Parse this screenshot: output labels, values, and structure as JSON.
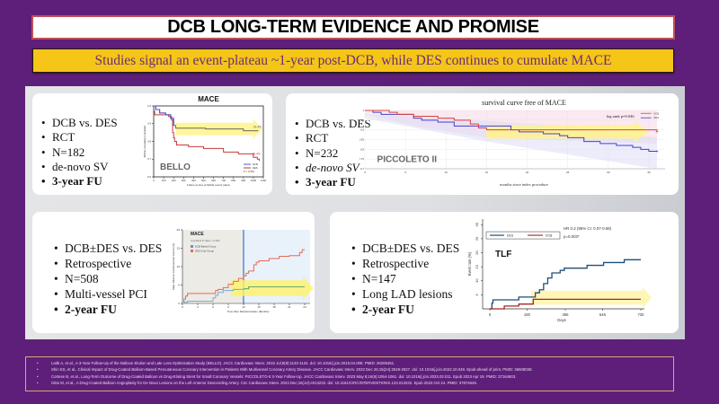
{
  "title": "DCB LONG-TERM EVIDENCE AND PROMISE",
  "subtitle": "Studies signal an event-plateau ~1-year post-DCB, while DES continues to cumulate MACE",
  "colors": {
    "background": "#5e1f7a",
    "title_border": "#c0505a",
    "subtitle_bg": "#f5c518",
    "subtitle_text": "#6b2d7a",
    "highlight_arrow": "#fff38a",
    "dcb_red": "#d03030",
    "des_blue": "#3a3ad0"
  },
  "cards": [
    {
      "bullets": [
        "DCB vs. DES",
        "RCT",
        "N=182",
        "de-novo SV",
        "3-year FU"
      ],
      "bold_index": 4,
      "chart": {
        "title": "MACE",
        "study_label": "BELLO",
        "ylabel": "MACE cumulative probability",
        "xlabel": "Follow-up time at MACE events (days)",
        "legend": [
          "DCB",
          "DES"
        ],
        "p_value": "P = 0.019",
        "annotations": {
          "dcb": "14.4%",
          "des": "30.4%"
        }
      }
    },
    {
      "bullets": [
        "DCB vs. DES",
        "RCT",
        "N=232",
        "de-novo SV",
        "3-year FU"
      ],
      "italic_index": 3,
      "bold_index": 4,
      "chart": {
        "title": "survival curve free of MACE",
        "study_label": "PICCOLETO II",
        "xlabel": "months since index procedure",
        "legend": [
          "DCB",
          "DES"
        ],
        "log_rank": "log rank p=0.046"
      }
    },
    {
      "bullets": [
        "DCB±DES vs. DES",
        "Retrospective",
        "N=508",
        "Multi-vessel PCI",
        "2-year FU"
      ],
      "bold_index": 4,
      "chart": {
        "title": "MACE",
        "subtitle": "Log-Rank P value = 0.002",
        "ylabel": "Major Adverse Cardiovascular Events (%)",
        "xlabel": "Time After Randomization (Months)",
        "legend": [
          "DCB-Based Group",
          "DES-Only Group"
        ]
      }
    },
    {
      "bullets": [
        "DCB±DES vs. DES",
        "Retrospective",
        "N=147",
        "Long LAD lesions",
        "2-year FU"
      ],
      "bold_index": 4,
      "chart": {
        "title": "TLF",
        "ylabel": "Event rate (%)",
        "xlabel": "Days",
        "legend": [
          "DES",
          "DCB"
        ],
        "hr_text": "HR 0.2 (95% CI: 0.07-0.58)",
        "p_text": "p=0.003*"
      }
    }
  ],
  "chart_data": [
    {
      "type": "line",
      "title": "MACE",
      "xlabel": "Follow-up time at MACE events (days)",
      "ylabel": "MACE cumulative probability",
      "x_ticks": [
        "0",
        "100",
        "200",
        "300",
        "400",
        "500",
        "600",
        "700",
        "800",
        "900",
        "1000",
        "1100"
      ],
      "y_ticks": [
        "0.6",
        "0.7",
        "0.8",
        "0.9",
        "1.0"
      ],
      "xlim": [
        0,
        1100
      ],
      "ylim": [
        0.6,
        1.0
      ],
      "series": [
        {
          "name": "DCB",
          "x": [
            0,
            20,
            60,
            120,
            170,
            200,
            220,
            520,
            900,
            1050
          ],
          "y": [
            1.0,
            0.98,
            0.96,
            0.95,
            0.93,
            0.89,
            0.875,
            0.87,
            0.86,
            0.86
          ]
        },
        {
          "name": "DES",
          "x": [
            0,
            10,
            150,
            180,
            190,
            200,
            210,
            230,
            350,
            500,
            700,
            850,
            1000,
            1040,
            1060
          ],
          "y": [
            0.97,
            0.95,
            0.94,
            0.92,
            0.85,
            0.82,
            0.8,
            0.78,
            0.77,
            0.76,
            0.74,
            0.73,
            0.71,
            0.7,
            0.69
          ]
        }
      ]
    },
    {
      "type": "line",
      "title": "survival curve free of MACE",
      "xlabel": "months since index procedure",
      "x_ticks": [
        "0",
        "5",
        "10",
        "15",
        "20",
        "25",
        "30",
        "35"
      ],
      "y_ticks": [
        "0.7",
        "0.75",
        "0.8",
        "0.85",
        "0.9",
        "0.95",
        "1"
      ],
      "xlim": [
        0,
        37
      ],
      "ylim": [
        0.7,
        1.0
      ],
      "series": [
        {
          "name": "DCB",
          "x": [
            0,
            3,
            4,
            6,
            9,
            11,
            13,
            14,
            15,
            36
          ],
          "y": [
            1.0,
            0.99,
            0.98,
            0.97,
            0.96,
            0.95,
            0.93,
            0.91,
            0.9,
            0.89
          ]
        },
        {
          "name": "DES",
          "x": [
            0,
            1,
            2,
            6,
            7,
            9,
            11,
            18,
            19,
            22,
            24,
            25,
            27,
            29,
            31,
            33,
            34,
            35,
            36
          ],
          "y": [
            1.0,
            0.99,
            0.98,
            0.96,
            0.95,
            0.94,
            0.92,
            0.9,
            0.89,
            0.88,
            0.87,
            0.86,
            0.84,
            0.83,
            0.82,
            0.81,
            0.8,
            0.79,
            0.79
          ]
        }
      ],
      "annotation": "log rank p=0.046"
    },
    {
      "type": "line",
      "title": "MACE",
      "xlabel": "Time After Randomization (Months)",
      "ylabel": "Major Adverse Cardiovascular Events (%)",
      "x_ticks": [
        "0",
        "3",
        "6",
        "9",
        "12",
        "15",
        "18",
        "21",
        "24"
      ],
      "y_ticks": [
        "0",
        "5",
        "10",
        "15",
        "20"
      ],
      "xlim": [
        0,
        24
      ],
      "ylim": [
        0,
        20
      ],
      "series": [
        {
          "name": "DCB-Based Group",
          "x": [
            0,
            0.3,
            1,
            5.5,
            6,
            6.5,
            7,
            8,
            10,
            12,
            13,
            24
          ],
          "y": [
            0,
            0.3,
            0.6,
            0.6,
            1.5,
            2.2,
            3.0,
            3.5,
            3.8,
            4.0,
            4.5,
            4.5
          ]
        },
        {
          "name": "DES-Only Group",
          "x": [
            0,
            0.3,
            0.6,
            1,
            6,
            6.5,
            7,
            8,
            9,
            10,
            11,
            12,
            12.5,
            13,
            14,
            14.5,
            15,
            17,
            19,
            21,
            23,
            23.5,
            24
          ],
          "y": [
            0,
            1.2,
            2.0,
            2.7,
            2.7,
            3.5,
            3.8,
            4.3,
            5.2,
            6.0,
            6.8,
            7.5,
            8.2,
            8.8,
            10.5,
            11.2,
            11.6,
            12.2,
            12.8,
            13.0,
            13.8,
            14.6,
            14.6
          ]
        }
      ],
      "annotation": "Log-Rank P value = 0.002"
    },
    {
      "type": "line",
      "title": "TLF",
      "xlabel": "Days",
      "ylabel": "Event rate (%)",
      "x_ticks": [
        "0",
        "180",
        "365",
        "545",
        "730"
      ],
      "y_ticks": [
        "5",
        "10",
        "15",
        "20",
        "25",
        "30"
      ],
      "xlim": [
        0,
        750
      ],
      "ylim": [
        0,
        30
      ],
      "series": [
        {
          "name": "DES",
          "x": [
            0,
            10,
            15,
            100,
            140,
            220,
            240,
            260,
            280,
            300,
            340,
            360,
            470,
            550,
            650,
            730
          ],
          "y": [
            0,
            2.0,
            3.2,
            3.2,
            4.2,
            5.7,
            6.8,
            9.0,
            11.0,
            12.8,
            13.7,
            14.5,
            15.5,
            16.5,
            17.5,
            17.5
          ]
        },
        {
          "name": "DCB",
          "x": [
            0,
            70,
            140,
            210,
            730
          ],
          "y": [
            0,
            1.0,
            1.7,
            3.4,
            3.4
          ]
        }
      ],
      "annotation": "HR 0.2 (95% CI: 0.07-0.58) p=0.003*"
    }
  ],
  "references": [
    "Latib A, et al., A 3-Year Follow-Up of the Balloon Elution and Late Loss Optimization Study (BELLO). JACC Cardiovasc Interv. 2015 Jul;8(8):1132-1134. doi: 10.1016/j.jcin.2015.04.008. PMID: 26205451.",
    "Shin ES, et al., Clinical Impact of Drug-Coated Balloon-Based Percutaneous Coronary Intervention in Patients With Multivessel Coronary Artery Disease. JACC Cardiovasc Interv. 2022 Dec 26;15(24):2519-2527. doi: 10.1016/j.jcin.2022.10.049. Epub ahead of print. PMID: 36609038.",
    "Cortese B, et al., Long-Term Outcome of Drug-Coated Balloon vs Drug-Eluting Stent for Small Coronary Vessels: PICCOLETO-II 3-Year Follow-Up. JACC Cardiovasc Interv. 2023 May 8;16(9):1054-1061. doi: 10.1016/j.jcin.2023.02.011. Epub 2023 Apr 19. PMID: 37164603.",
    "Gitto M, et al., A Drug-Coated Balloon Angioplasty for De Novo Lesions on the Left Anterior Descending Artery. Circ Cardiovasc Interv. 2023 Dec;16(12):e013232. doi: 10.1161/CIRCINTERVENTIONS.123.013232. Epub 2023 Oct 24. PMID: 37874646."
  ]
}
